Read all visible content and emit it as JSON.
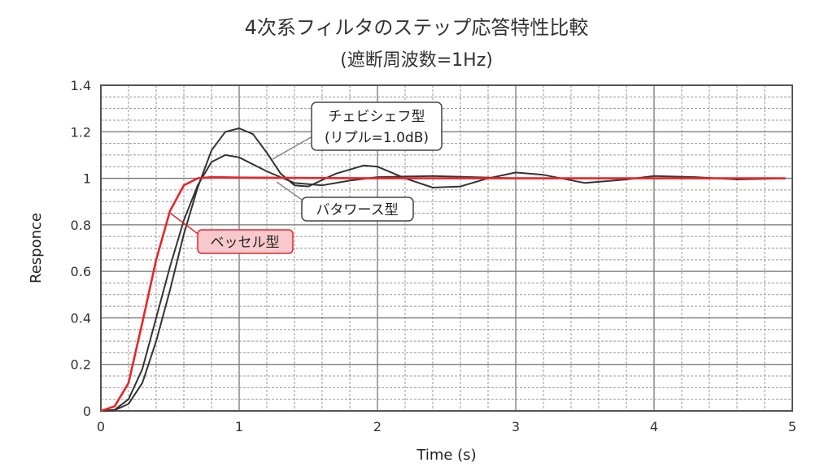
{
  "chart_data": {
    "type": "line",
    "title": "4次系フィルタのステップ応答特性比較",
    "subtitle": "(遮断周波数=1Hz)",
    "xlabel": "Time (s)",
    "ylabel": "Responce",
    "xlim": [
      0,
      5
    ],
    "ylim": [
      0,
      1.4
    ],
    "xticks": [
      "0",
      "1",
      "2",
      "3",
      "4",
      "5"
    ],
    "yticks": [
      "0",
      "0.2",
      "0.4",
      "0.6",
      "0.8",
      "1",
      "1.2",
      "1.4"
    ],
    "grid": true,
    "series": [
      {
        "name": "チェビシェフ型",
        "name_line2": "(リプル=1.0dB)",
        "color": "#333333",
        "x": [
          0,
          0.1,
          0.2,
          0.3,
          0.4,
          0.5,
          0.6,
          0.7,
          0.8,
          0.9,
          1.0,
          1.1,
          1.2,
          1.3,
          1.4,
          1.5,
          1.7,
          1.9,
          2.0,
          2.2,
          2.4,
          2.6,
          2.8,
          3.0,
          3.2,
          3.5,
          3.8,
          4.0,
          4.3,
          4.6,
          4.95
        ],
        "y": [
          0,
          0.003,
          0.03,
          0.12,
          0.3,
          0.52,
          0.76,
          0.96,
          1.12,
          1.2,
          1.215,
          1.19,
          1.11,
          1.02,
          0.97,
          0.965,
          1.02,
          1.055,
          1.05,
          1.0,
          0.96,
          0.965,
          1.0,
          1.025,
          1.015,
          0.98,
          0.995,
          1.01,
          1.005,
          0.995,
          1.0
        ]
      },
      {
        "name": "バタワース型",
        "color": "#333333",
        "x": [
          0,
          0.1,
          0.2,
          0.3,
          0.4,
          0.5,
          0.6,
          0.7,
          0.8,
          0.9,
          1.0,
          1.2,
          1.4,
          1.6,
          1.8,
          2.0,
          2.4,
          3.0,
          4.0,
          4.95
        ],
        "y": [
          0,
          0.005,
          0.05,
          0.18,
          0.4,
          0.62,
          0.82,
          0.97,
          1.07,
          1.1,
          1.09,
          1.03,
          0.98,
          0.97,
          0.99,
          1.005,
          1.01,
          1.0,
          1.0,
          1.0
        ]
      },
      {
        "name": "ベッセル型",
        "color": "#e8262b",
        "x": [
          0,
          0.1,
          0.2,
          0.3,
          0.4,
          0.5,
          0.6,
          0.7,
          0.8,
          1.0,
          2.0,
          3.0,
          4.0,
          4.95
        ],
        "y": [
          0,
          0.02,
          0.12,
          0.38,
          0.65,
          0.86,
          0.97,
          1.0,
          1.005,
          1.003,
          1.0,
          1.0,
          1.0,
          1.0
        ]
      }
    ]
  }
}
